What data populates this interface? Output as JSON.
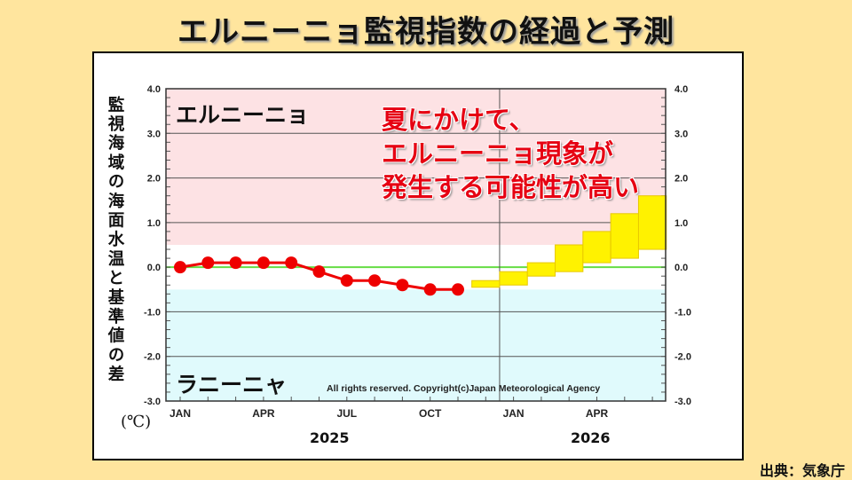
{
  "title": "エルニーニョ監視指数の経過と予測",
  "source": "出典：気象庁",
  "annotation": [
    "夏にかけて、",
    "エルニーニョ現象が",
    "発生する可能性が高い"
  ],
  "colors": {
    "background": "#FFE59E",
    "el_nino_zone": "#FDE2E4",
    "la_nina_zone": "#E0FAFC",
    "observed": "#EE0000",
    "forecast": "#FFF200",
    "zero_line": "#66DD44"
  },
  "chart_data": {
    "type": "line",
    "ylabel": "監視海域の海面水温と基準値の差",
    "unit": "(℃)",
    "ylim": [
      -3.0,
      4.0
    ],
    "yticks": [
      "4.0",
      "3.0",
      "2.0",
      "1.0",
      "0.0",
      "-1.0",
      "-2.0",
      "-3.0"
    ],
    "xticks": [
      "JAN",
      "APR",
      "JUL",
      "OCT",
      "JAN",
      "APR"
    ],
    "years": [
      "2025",
      "2026"
    ],
    "zone_labels": {
      "el_nino": "エルニーニョ",
      "la_nina": "ラニーニャ"
    },
    "zone_thresholds": {
      "el_nino": 0.5,
      "la_nina": -0.5
    },
    "copyright": "All rights reserved. Copyright(c)Japan Meteorological Agency",
    "observed": {
      "months": [
        "2025-01",
        "2025-02",
        "2025-03",
        "2025-04",
        "2025-05",
        "2025-06",
        "2025-07",
        "2025-08",
        "2025-09",
        "2025-10",
        "2025-11"
      ],
      "values": [
        0.0,
        0.1,
        0.1,
        0.1,
        0.1,
        -0.1,
        -0.3,
        -0.3,
        -0.4,
        -0.5,
        -0.5
      ]
    },
    "forecast_range": {
      "months": [
        "2025-12",
        "2026-01",
        "2026-02",
        "2026-03",
        "2026-04",
        "2026-05",
        "2026-06"
      ],
      "low": [
        -0.45,
        -0.4,
        -0.2,
        -0.1,
        0.1,
        0.2,
        0.4
      ],
      "high": [
        -0.3,
        -0.1,
        0.1,
        0.5,
        0.8,
        1.2,
        1.6
      ]
    }
  }
}
